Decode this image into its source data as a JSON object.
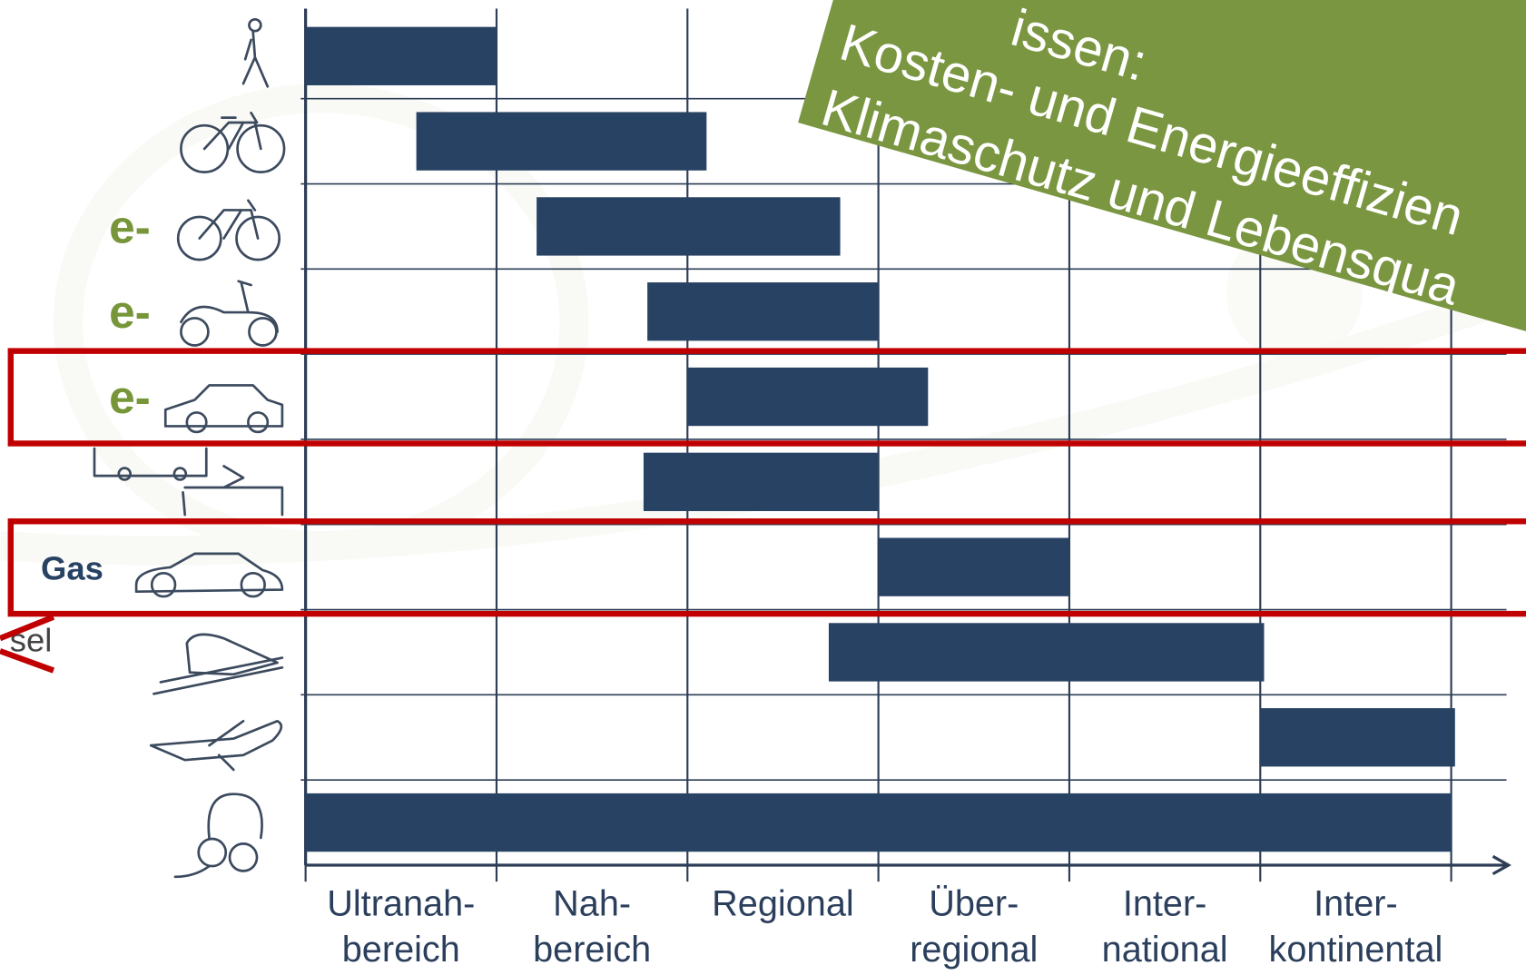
{
  "chart_data": {
    "type": "range",
    "categories": [
      null,
      null,
      "e-",
      "e-",
      "e-",
      null,
      "Gas",
      null,
      null,
      null
    ],
    "start": [
      0,
      0.58,
      1.21,
      1.79,
      2.0,
      1.77,
      3.0,
      2.74,
      5.0,
      0
    ],
    "end": [
      1.0,
      2.1,
      2.8,
      3.0,
      3.26,
      3.0,
      4.0,
      5.02,
      6.02,
      6.0
    ],
    "color": "#284263",
    "label_colors": [
      "#77963a",
      "#77963a",
      "#77963a",
      "#77963a",
      "#77963a",
      "#77963a",
      "#284263",
      "#77963a",
      "#77963a",
      "#77963a"
    ],
    "x_categories": [
      [
        "Ultranah-",
        "bereich"
      ],
      [
        "Nah-",
        "bereich"
      ],
      [
        "Regional"
      ],
      [
        "Über-",
        "regional"
      ],
      [
        "Inter-",
        "national"
      ],
      [
        "Inter-",
        "kontinental"
      ]
    ],
    "xlim": [
      0,
      6.3
    ],
    "xticks": [
      0,
      1,
      2,
      3,
      4,
      5,
      6
    ],
    "grid": true,
    "highlight_rows": [
      4,
      6
    ],
    "highlight_color": "#c00000",
    "annotation": "sel",
    "banner": {
      "color": "#7a9640",
      "lines": [
        "issen:",
        "Kosten- und Energieeffizien",
        "Klimaschutz und Lebensqua"
      ]
    }
  }
}
